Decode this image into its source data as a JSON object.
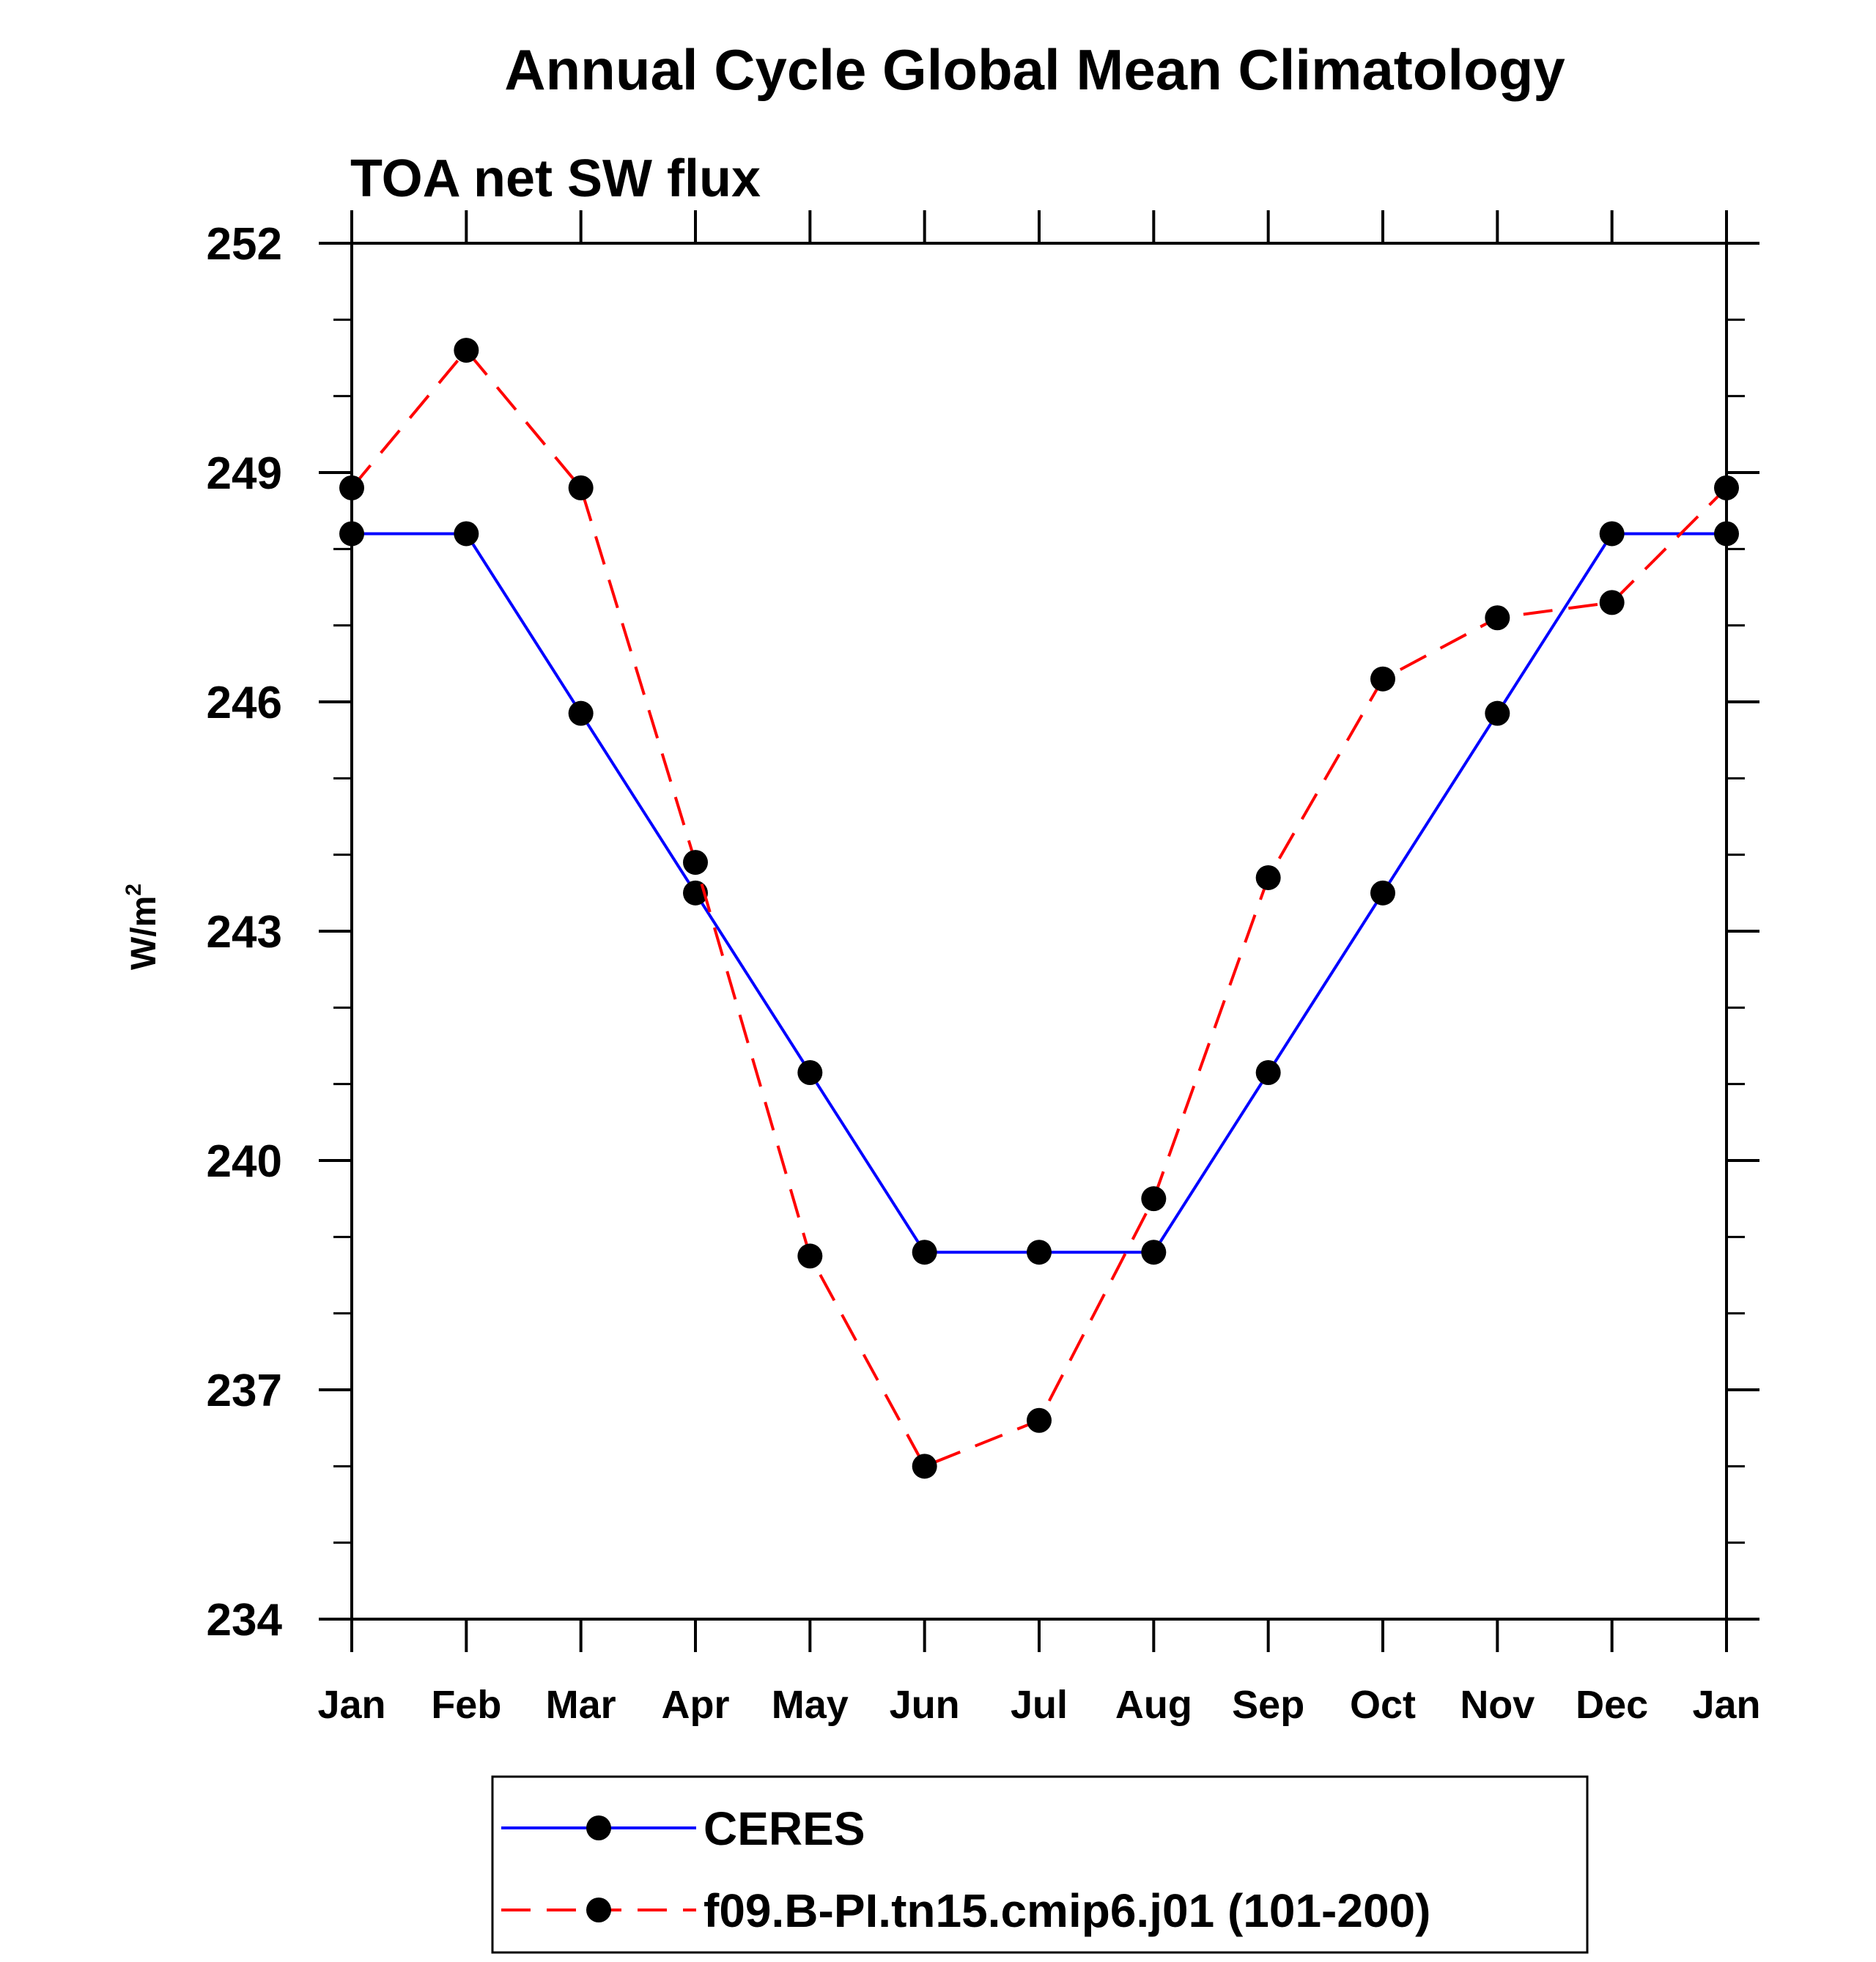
{
  "chart_data": {
    "type": "line",
    "title": "Annual Cycle Global Mean Climatology",
    "subtitle": "TOA net SW flux",
    "xlabel": "",
    "ylabel": "W/m",
    "ylabel_superscript": "2",
    "categories": [
      "Jan",
      "Feb",
      "Mar",
      "Apr",
      "May",
      "Jun",
      "Jul",
      "Aug",
      "Sep",
      "Oct",
      "Nov",
      "Dec",
      "Jan"
    ],
    "ylim": [
      234,
      252
    ],
    "yticks": [
      "252",
      "249",
      "246",
      "243",
      "240",
      "237",
      "234"
    ],
    "ytick_values": [
      252,
      249,
      246,
      243,
      240,
      237,
      234
    ],
    "yminor_step": 1,
    "grid": false,
    "legend_position": "bottom-center",
    "series": [
      {
        "name": "CERES",
        "color": "#0000ff",
        "dash": "solid",
        "values": [
          248.2,
          248.2,
          245.85,
          243.5,
          241.15,
          238.8,
          238.8,
          238.8,
          241.15,
          243.5,
          245.85,
          248.2,
          248.2
        ]
      },
      {
        "name": "f09.B-PI.tn15.cmip6.j01 (101-200)",
        "color": "#ff0000",
        "dash": "dashed",
        "values": [
          248.8,
          250.6,
          248.8,
          243.9,
          238.75,
          236.0,
          236.6,
          239.5,
          243.7,
          246.3,
          247.1,
          247.3,
          248.8
        ]
      }
    ]
  }
}
